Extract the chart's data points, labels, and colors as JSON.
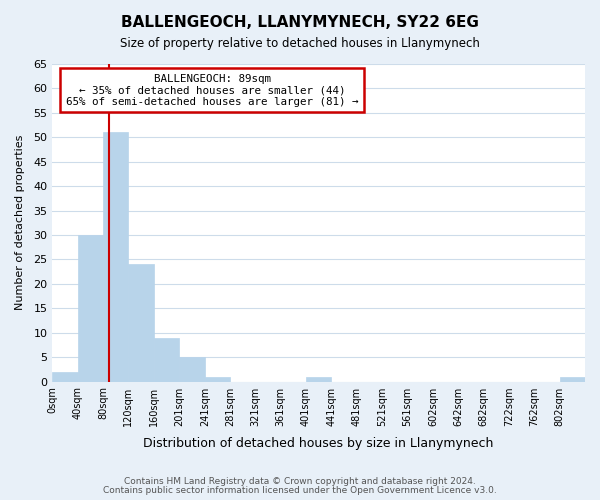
{
  "title": "BALLENGEOCH, LLANYMYNECH, SY22 6EG",
  "subtitle": "Size of property relative to detached houses in Llanymynech",
  "xlabel": "Distribution of detached houses by size in Llanymynech",
  "ylabel": "Number of detached properties",
  "footnote1": "Contains HM Land Registry data © Crown copyright and database right 2024.",
  "footnote2": "Contains public sector information licensed under the Open Government Licence v3.0.",
  "bar_edges": [
    0,
    40,
    80,
    120,
    160,
    201,
    241,
    281,
    321,
    361,
    401,
    441,
    481,
    521,
    561,
    602,
    642,
    682,
    722,
    762,
    802,
    842
  ],
  "bar_heights": [
    2,
    30,
    51,
    24,
    9,
    5,
    1,
    0,
    0,
    0,
    1,
    0,
    0,
    0,
    0,
    0,
    0,
    0,
    0,
    0,
    1
  ],
  "bar_color": "#b8d4ea",
  "bar_edge_color": "#b8d4ea",
  "ylim": [
    0,
    65
  ],
  "yticks": [
    0,
    5,
    10,
    15,
    20,
    25,
    30,
    35,
    40,
    45,
    50,
    55,
    60,
    65
  ],
  "xtick_labels": [
    "0sqm",
    "40sqm",
    "80sqm",
    "120sqm",
    "160sqm",
    "201sqm",
    "241sqm",
    "281sqm",
    "321sqm",
    "361sqm",
    "401sqm",
    "441sqm",
    "481sqm",
    "521sqm",
    "561sqm",
    "602sqm",
    "642sqm",
    "682sqm",
    "722sqm",
    "762sqm",
    "802sqm"
  ],
  "xlim": [
    0,
    842
  ],
  "marker_x": 89,
  "pct_smaller": 35,
  "n_smaller": 44,
  "pct_larger": 65,
  "n_larger": 81,
  "annotation_box_color": "#ffffff",
  "annotation_box_edge": "#cc0000",
  "marker_line_color": "#cc0000",
  "grid_color": "#cddcea",
  "background_color": "#e8f0f8",
  "plot_bg_color": "#ffffff"
}
